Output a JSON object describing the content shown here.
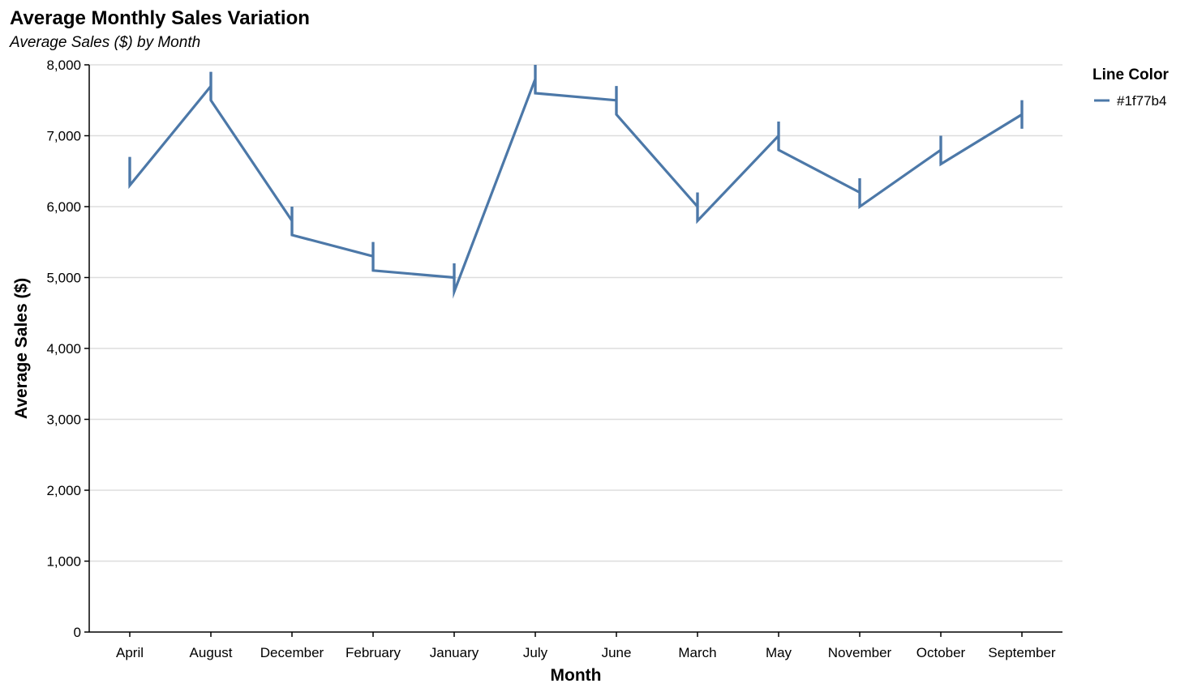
{
  "chart_data": {
    "type": "line",
    "title": "Average Monthly Sales Variation",
    "subtitle": "Average Sales ($) by Month",
    "xlabel": "Month",
    "ylabel": "Average Sales ($)",
    "ylim": [
      0,
      8000
    ],
    "yticks": [
      0,
      1000,
      2000,
      3000,
      4000,
      5000,
      6000,
      7000,
      8000
    ],
    "ytick_labels": [
      "0",
      "1,000",
      "2,000",
      "3,000",
      "4,000",
      "5,000",
      "6,000",
      "7,000",
      "8,000"
    ],
    "grid": true,
    "line_color": "#4c78a8",
    "categories": [
      "April",
      "August",
      "December",
      "February",
      "January",
      "July",
      "June",
      "March",
      "May",
      "November",
      "October",
      "September"
    ],
    "series": [
      {
        "name": "#1f77b4",
        "points": [
          {
            "month": "April",
            "top": 6700,
            "bottom": 6300
          },
          {
            "month": "August",
            "top": 7900,
            "bottom": 7500
          },
          {
            "month": "December",
            "top": 6000,
            "bottom": 5600
          },
          {
            "month": "February",
            "top": 5500,
            "bottom": 5100
          },
          {
            "month": "January",
            "top": 5200,
            "bottom": 4800
          },
          {
            "month": "July",
            "top": 8000,
            "bottom": 7600
          },
          {
            "month": "June",
            "top": 7700,
            "bottom": 7300
          },
          {
            "month": "March",
            "top": 6200,
            "bottom": 5800
          },
          {
            "month": "May",
            "top": 7200,
            "bottom": 6800
          },
          {
            "month": "November",
            "top": 6400,
            "bottom": 6000
          },
          {
            "month": "October",
            "top": 7000,
            "bottom": 6600
          },
          {
            "month": "September",
            "top": 7500,
            "bottom": 7100
          }
        ],
        "path_values": [
          6300,
          6700,
          6300,
          7700,
          7900,
          7500,
          5800,
          6000,
          5600,
          5300,
          5500,
          5100,
          5000,
          5200,
          4800,
          7800,
          8000,
          7600,
          7500,
          7700,
          7300,
          6000,
          6200,
          5800,
          7000,
          7200,
          6800,
          6200,
          6400,
          6000,
          6800,
          7000,
          6600,
          7300,
          7500,
          7100
        ]
      }
    ],
    "legend": {
      "title": "Line Color",
      "position": "right",
      "items": [
        "#1f77b4"
      ]
    }
  }
}
